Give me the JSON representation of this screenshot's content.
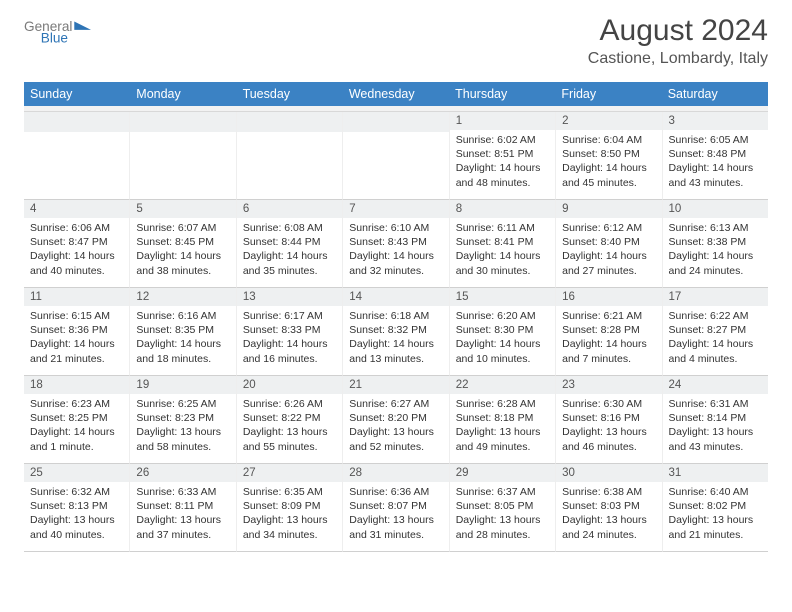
{
  "brand": {
    "word1": "General",
    "word2": "Blue"
  },
  "header": {
    "title": "August 2024",
    "location": "Castione, Lombardy, Italy"
  },
  "colors": {
    "header_bar": "#3b82c4",
    "header_text": "#ffffff",
    "daynum_bg": "#eef0f1",
    "cell_border": "#d0d0d0",
    "logo_gray": "#7a7a7a",
    "logo_blue": "#2e74b5"
  },
  "daynames": [
    "Sunday",
    "Monday",
    "Tuesday",
    "Wednesday",
    "Thursday",
    "Friday",
    "Saturday"
  ],
  "weeks": [
    [
      {
        "blank": true
      },
      {
        "blank": true
      },
      {
        "blank": true
      },
      {
        "blank": true
      },
      {
        "day": "1",
        "sunrise": "Sunrise: 6:02 AM",
        "sunset": "Sunset: 8:51 PM",
        "daylight": "Daylight: 14 hours and 48 minutes."
      },
      {
        "day": "2",
        "sunrise": "Sunrise: 6:04 AM",
        "sunset": "Sunset: 8:50 PM",
        "daylight": "Daylight: 14 hours and 45 minutes."
      },
      {
        "day": "3",
        "sunrise": "Sunrise: 6:05 AM",
        "sunset": "Sunset: 8:48 PM",
        "daylight": "Daylight: 14 hours and 43 minutes."
      }
    ],
    [
      {
        "day": "4",
        "sunrise": "Sunrise: 6:06 AM",
        "sunset": "Sunset: 8:47 PM",
        "daylight": "Daylight: 14 hours and 40 minutes."
      },
      {
        "day": "5",
        "sunrise": "Sunrise: 6:07 AM",
        "sunset": "Sunset: 8:45 PM",
        "daylight": "Daylight: 14 hours and 38 minutes."
      },
      {
        "day": "6",
        "sunrise": "Sunrise: 6:08 AM",
        "sunset": "Sunset: 8:44 PM",
        "daylight": "Daylight: 14 hours and 35 minutes."
      },
      {
        "day": "7",
        "sunrise": "Sunrise: 6:10 AM",
        "sunset": "Sunset: 8:43 PM",
        "daylight": "Daylight: 14 hours and 32 minutes."
      },
      {
        "day": "8",
        "sunrise": "Sunrise: 6:11 AM",
        "sunset": "Sunset: 8:41 PM",
        "daylight": "Daylight: 14 hours and 30 minutes."
      },
      {
        "day": "9",
        "sunrise": "Sunrise: 6:12 AM",
        "sunset": "Sunset: 8:40 PM",
        "daylight": "Daylight: 14 hours and 27 minutes."
      },
      {
        "day": "10",
        "sunrise": "Sunrise: 6:13 AM",
        "sunset": "Sunset: 8:38 PM",
        "daylight": "Daylight: 14 hours and 24 minutes."
      }
    ],
    [
      {
        "day": "11",
        "sunrise": "Sunrise: 6:15 AM",
        "sunset": "Sunset: 8:36 PM",
        "daylight": "Daylight: 14 hours and 21 minutes."
      },
      {
        "day": "12",
        "sunrise": "Sunrise: 6:16 AM",
        "sunset": "Sunset: 8:35 PM",
        "daylight": "Daylight: 14 hours and 18 minutes."
      },
      {
        "day": "13",
        "sunrise": "Sunrise: 6:17 AM",
        "sunset": "Sunset: 8:33 PM",
        "daylight": "Daylight: 14 hours and 16 minutes."
      },
      {
        "day": "14",
        "sunrise": "Sunrise: 6:18 AM",
        "sunset": "Sunset: 8:32 PM",
        "daylight": "Daylight: 14 hours and 13 minutes."
      },
      {
        "day": "15",
        "sunrise": "Sunrise: 6:20 AM",
        "sunset": "Sunset: 8:30 PM",
        "daylight": "Daylight: 14 hours and 10 minutes."
      },
      {
        "day": "16",
        "sunrise": "Sunrise: 6:21 AM",
        "sunset": "Sunset: 8:28 PM",
        "daylight": "Daylight: 14 hours and 7 minutes."
      },
      {
        "day": "17",
        "sunrise": "Sunrise: 6:22 AM",
        "sunset": "Sunset: 8:27 PM",
        "daylight": "Daylight: 14 hours and 4 minutes."
      }
    ],
    [
      {
        "day": "18",
        "sunrise": "Sunrise: 6:23 AM",
        "sunset": "Sunset: 8:25 PM",
        "daylight": "Daylight: 14 hours and 1 minute."
      },
      {
        "day": "19",
        "sunrise": "Sunrise: 6:25 AM",
        "sunset": "Sunset: 8:23 PM",
        "daylight": "Daylight: 13 hours and 58 minutes."
      },
      {
        "day": "20",
        "sunrise": "Sunrise: 6:26 AM",
        "sunset": "Sunset: 8:22 PM",
        "daylight": "Daylight: 13 hours and 55 minutes."
      },
      {
        "day": "21",
        "sunrise": "Sunrise: 6:27 AM",
        "sunset": "Sunset: 8:20 PM",
        "daylight": "Daylight: 13 hours and 52 minutes."
      },
      {
        "day": "22",
        "sunrise": "Sunrise: 6:28 AM",
        "sunset": "Sunset: 8:18 PM",
        "daylight": "Daylight: 13 hours and 49 minutes."
      },
      {
        "day": "23",
        "sunrise": "Sunrise: 6:30 AM",
        "sunset": "Sunset: 8:16 PM",
        "daylight": "Daylight: 13 hours and 46 minutes."
      },
      {
        "day": "24",
        "sunrise": "Sunrise: 6:31 AM",
        "sunset": "Sunset: 8:14 PM",
        "daylight": "Daylight: 13 hours and 43 minutes."
      }
    ],
    [
      {
        "day": "25",
        "sunrise": "Sunrise: 6:32 AM",
        "sunset": "Sunset: 8:13 PM",
        "daylight": "Daylight: 13 hours and 40 minutes."
      },
      {
        "day": "26",
        "sunrise": "Sunrise: 6:33 AM",
        "sunset": "Sunset: 8:11 PM",
        "daylight": "Daylight: 13 hours and 37 minutes."
      },
      {
        "day": "27",
        "sunrise": "Sunrise: 6:35 AM",
        "sunset": "Sunset: 8:09 PM",
        "daylight": "Daylight: 13 hours and 34 minutes."
      },
      {
        "day": "28",
        "sunrise": "Sunrise: 6:36 AM",
        "sunset": "Sunset: 8:07 PM",
        "daylight": "Daylight: 13 hours and 31 minutes."
      },
      {
        "day": "29",
        "sunrise": "Sunrise: 6:37 AM",
        "sunset": "Sunset: 8:05 PM",
        "daylight": "Daylight: 13 hours and 28 minutes."
      },
      {
        "day": "30",
        "sunrise": "Sunrise: 6:38 AM",
        "sunset": "Sunset: 8:03 PM",
        "daylight": "Daylight: 13 hours and 24 minutes."
      },
      {
        "day": "31",
        "sunrise": "Sunrise: 6:40 AM",
        "sunset": "Sunset: 8:02 PM",
        "daylight": "Daylight: 13 hours and 21 minutes."
      }
    ]
  ]
}
